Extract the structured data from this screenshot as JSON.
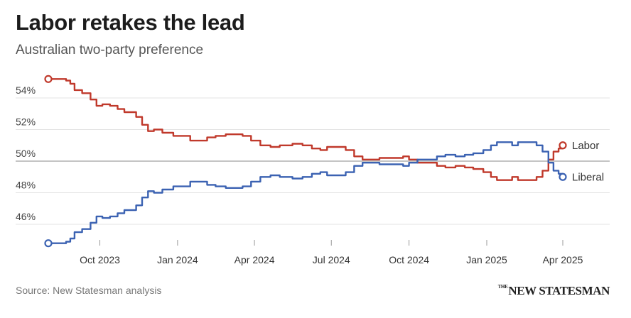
{
  "header": {
    "title": "Labor retakes the lead",
    "subtitle": "Australian two-party preference"
  },
  "footer": {
    "source": "Source: New Statesman analysis",
    "logo_small": "THE",
    "logo_main": "NEW STATESMAN"
  },
  "colors": {
    "labor": "#c0392b",
    "liberal": "#3b62b2",
    "grid": "#e3e3e3",
    "baseline": "#888888"
  },
  "chart_data": {
    "type": "line",
    "title": "Labor retakes the lead",
    "subtitle": "Australian two-party preference",
    "xlabel": "",
    "ylabel": "",
    "x_range": [
      "2023-08-01",
      "2025-04-01"
    ],
    "ylim": [
      45,
      55.5
    ],
    "y_ticks": [
      46,
      48,
      50,
      52,
      54
    ],
    "y_tick_labels": [
      "46%",
      "48%",
      "50%",
      "52%",
      "54%"
    ],
    "x_ticks": [
      "2023-10-01",
      "2024-01-01",
      "2024-04-01",
      "2024-07-01",
      "2024-10-01",
      "2025-01-01",
      "2025-04-01"
    ],
    "x_tick_labels": [
      "Oct 2023",
      "Jan 2024",
      "Apr 2024",
      "Jul 2024",
      "Oct 2024",
      "Jan 2025",
      "Apr 2025"
    ],
    "reference_line": 50,
    "grid": true,
    "legend": "direct labels at line ends",
    "series": [
      {
        "name": "Labor",
        "color": "#c0392b",
        "points": [
          [
            "2023-08-01",
            55.2
          ],
          [
            "2023-08-12",
            55.2
          ],
          [
            "2023-08-22",
            55.1
          ],
          [
            "2023-08-27",
            54.9
          ],
          [
            "2023-09-01",
            54.5
          ],
          [
            "2023-09-10",
            54.3
          ],
          [
            "2023-09-20",
            53.9
          ],
          [
            "2023-09-27",
            53.5
          ],
          [
            "2023-10-04",
            53.6
          ],
          [
            "2023-10-13",
            53.5
          ],
          [
            "2023-10-22",
            53.3
          ],
          [
            "2023-10-30",
            53.1
          ],
          [
            "2023-11-06",
            53.1
          ],
          [
            "2023-11-13",
            52.8
          ],
          [
            "2023-11-20",
            52.3
          ],
          [
            "2023-11-27",
            51.9
          ],
          [
            "2023-12-04",
            52.0
          ],
          [
            "2023-12-14",
            51.8
          ],
          [
            "2023-12-27",
            51.6
          ],
          [
            "2024-01-06",
            51.6
          ],
          [
            "2024-01-16",
            51.3
          ],
          [
            "2024-01-27",
            51.3
          ],
          [
            "2024-02-05",
            51.5
          ],
          [
            "2024-02-15",
            51.6
          ],
          [
            "2024-02-27",
            51.7
          ],
          [
            "2024-03-08",
            51.7
          ],
          [
            "2024-03-18",
            51.6
          ],
          [
            "2024-03-28",
            51.3
          ],
          [
            "2024-04-08",
            51.0
          ],
          [
            "2024-04-20",
            50.9
          ],
          [
            "2024-05-01",
            51.0
          ],
          [
            "2024-05-16",
            51.1
          ],
          [
            "2024-05-28",
            51.0
          ],
          [
            "2024-06-08",
            50.8
          ],
          [
            "2024-06-18",
            50.7
          ],
          [
            "2024-06-26",
            50.9
          ],
          [
            "2024-07-06",
            50.9
          ],
          [
            "2024-07-18",
            50.7
          ],
          [
            "2024-07-28",
            50.3
          ],
          [
            "2024-08-07",
            50.1
          ],
          [
            "2024-08-17",
            50.1
          ],
          [
            "2024-08-27",
            50.2
          ],
          [
            "2024-09-17",
            50.2
          ],
          [
            "2024-09-24",
            50.3
          ],
          [
            "2024-10-01",
            50.1
          ],
          [
            "2024-10-11",
            49.9
          ],
          [
            "2024-10-27",
            49.9
          ],
          [
            "2024-11-03",
            49.7
          ],
          [
            "2024-11-13",
            49.6
          ],
          [
            "2024-11-25",
            49.7
          ],
          [
            "2024-12-06",
            49.6
          ],
          [
            "2024-12-16",
            49.5
          ],
          [
            "2024-12-28",
            49.3
          ],
          [
            "2025-01-06",
            49.0
          ],
          [
            "2025-01-13",
            48.8
          ],
          [
            "2025-01-23",
            48.8
          ],
          [
            "2025-01-31",
            49.0
          ],
          [
            "2025-02-07",
            48.8
          ],
          [
            "2025-02-23",
            48.8
          ],
          [
            "2025-03-01",
            49.0
          ],
          [
            "2025-03-08",
            49.4
          ],
          [
            "2025-03-15",
            50.1
          ],
          [
            "2025-03-21",
            50.6
          ],
          [
            "2025-03-27",
            50.8
          ],
          [
            "2025-04-01",
            51.0
          ]
        ]
      },
      {
        "name": "Liberal",
        "color": "#3b62b2",
        "points": [
          [
            "2023-08-01",
            44.8
          ],
          [
            "2023-08-12",
            44.8
          ],
          [
            "2023-08-22",
            44.9
          ],
          [
            "2023-08-27",
            45.1
          ],
          [
            "2023-09-01",
            45.5
          ],
          [
            "2023-09-10",
            45.7
          ],
          [
            "2023-09-20",
            46.1
          ],
          [
            "2023-09-27",
            46.5
          ],
          [
            "2023-10-04",
            46.4
          ],
          [
            "2023-10-13",
            46.5
          ],
          [
            "2023-10-22",
            46.7
          ],
          [
            "2023-10-30",
            46.9
          ],
          [
            "2023-11-06",
            46.9
          ],
          [
            "2023-11-13",
            47.2
          ],
          [
            "2023-11-20",
            47.7
          ],
          [
            "2023-11-27",
            48.1
          ],
          [
            "2023-12-04",
            48.0
          ],
          [
            "2023-12-14",
            48.2
          ],
          [
            "2023-12-27",
            48.4
          ],
          [
            "2024-01-06",
            48.4
          ],
          [
            "2024-01-16",
            48.7
          ],
          [
            "2024-01-27",
            48.7
          ],
          [
            "2024-02-05",
            48.5
          ],
          [
            "2024-02-15",
            48.4
          ],
          [
            "2024-02-27",
            48.3
          ],
          [
            "2024-03-08",
            48.3
          ],
          [
            "2024-03-18",
            48.4
          ],
          [
            "2024-03-28",
            48.7
          ],
          [
            "2024-04-08",
            49.0
          ],
          [
            "2024-04-20",
            49.1
          ],
          [
            "2024-05-01",
            49.0
          ],
          [
            "2024-05-16",
            48.9
          ],
          [
            "2024-05-28",
            49.0
          ],
          [
            "2024-06-08",
            49.2
          ],
          [
            "2024-06-18",
            49.3
          ],
          [
            "2024-06-26",
            49.1
          ],
          [
            "2024-07-06",
            49.1
          ],
          [
            "2024-07-18",
            49.3
          ],
          [
            "2024-07-28",
            49.7
          ],
          [
            "2024-08-07",
            49.9
          ],
          [
            "2024-08-17",
            49.9
          ],
          [
            "2024-08-27",
            49.8
          ],
          [
            "2024-09-17",
            49.8
          ],
          [
            "2024-09-24",
            49.7
          ],
          [
            "2024-10-01",
            49.9
          ],
          [
            "2024-10-11",
            50.1
          ],
          [
            "2024-10-27",
            50.1
          ],
          [
            "2024-11-03",
            50.3
          ],
          [
            "2024-11-13",
            50.4
          ],
          [
            "2024-11-25",
            50.3
          ],
          [
            "2024-12-06",
            50.4
          ],
          [
            "2024-12-16",
            50.5
          ],
          [
            "2024-12-28",
            50.7
          ],
          [
            "2025-01-06",
            51.0
          ],
          [
            "2025-01-13",
            51.2
          ],
          [
            "2025-01-23",
            51.2
          ],
          [
            "2025-01-31",
            51.0
          ],
          [
            "2025-02-07",
            51.2
          ],
          [
            "2025-02-23",
            51.2
          ],
          [
            "2025-03-01",
            51.0
          ],
          [
            "2025-03-08",
            50.6
          ],
          [
            "2025-03-15",
            49.9
          ],
          [
            "2025-03-21",
            49.4
          ],
          [
            "2025-03-27",
            49.2
          ],
          [
            "2025-04-01",
            49.0
          ]
        ]
      }
    ]
  }
}
